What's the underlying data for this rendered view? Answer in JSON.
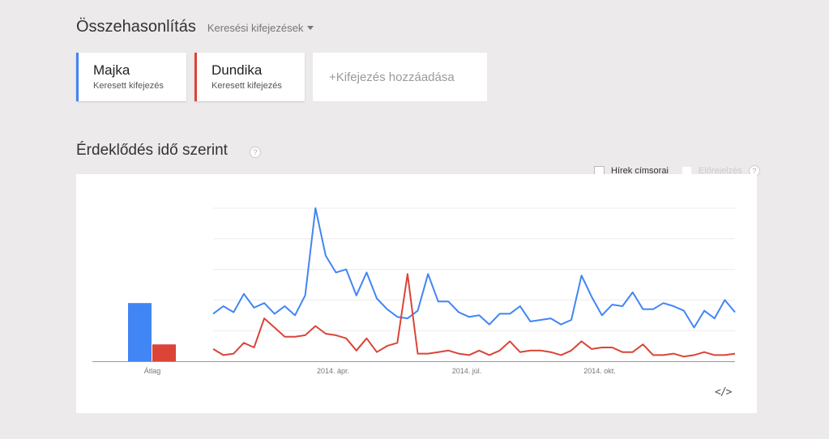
{
  "header": {
    "title": "Összehasonlítás",
    "mode_dropdown": "Keresési kifejezések"
  },
  "terms": [
    {
      "name": "Majka",
      "subtitle": "Keresett kifejezés",
      "color": "#4285f4"
    },
    {
      "name": "Dundika",
      "subtitle": "Keresett kifejezés",
      "color": "#db4437"
    }
  ],
  "add_term": {
    "label": "+Kifejezés hozzáadása"
  },
  "section": {
    "title": "Érdeklődés idő szerint",
    "help": "?"
  },
  "options": {
    "news_headlines": {
      "label": "Hírek címsorai",
      "checked": false
    },
    "forecast": {
      "label": "Előrejelzés",
      "checked": false,
      "disabled": true
    },
    "help": "?"
  },
  "embed_icon": "</>",
  "chart_data": {
    "type": "line",
    "title": "Érdeklődés idő szerint",
    "xlabel": "",
    "ylabel": "",
    "ylim": [
      0,
      100
    ],
    "grid": true,
    "x_tick_labels": [
      "2014. ápr.",
      "2014. júl.",
      "2014. okt."
    ],
    "average_bar": {
      "label": "Átlag",
      "values": [
        {
          "name": "Majka",
          "value": 38
        },
        {
          "name": "Dundika",
          "value": 11
        }
      ]
    },
    "series": [
      {
        "name": "Majka",
        "color": "#4285f4",
        "values": [
          31,
          36,
          32,
          44,
          35,
          38,
          31,
          36,
          30,
          43,
          100,
          69,
          58,
          60,
          43,
          58,
          41,
          34,
          29,
          28,
          33,
          57,
          39,
          39,
          32,
          29,
          30,
          24,
          31,
          31,
          36,
          26,
          27,
          28,
          24,
          27,
          56,
          42,
          30,
          37,
          36,
          45,
          34,
          34,
          38,
          36,
          33,
          22,
          33,
          28,
          40,
          32
        ]
      },
      {
        "name": "Dundika",
        "color": "#db4437",
        "values": [
          8,
          4,
          5,
          12,
          9,
          28,
          22,
          16,
          16,
          17,
          23,
          18,
          17,
          15,
          7,
          15,
          6,
          10,
          12,
          57,
          5,
          5,
          6,
          7,
          5,
          4,
          7,
          4,
          7,
          13,
          6,
          7,
          7,
          6,
          4,
          7,
          13,
          8,
          9,
          9,
          6,
          6,
          11,
          4,
          4,
          5,
          3,
          4,
          6,
          4,
          4,
          5
        ]
      }
    ]
  }
}
